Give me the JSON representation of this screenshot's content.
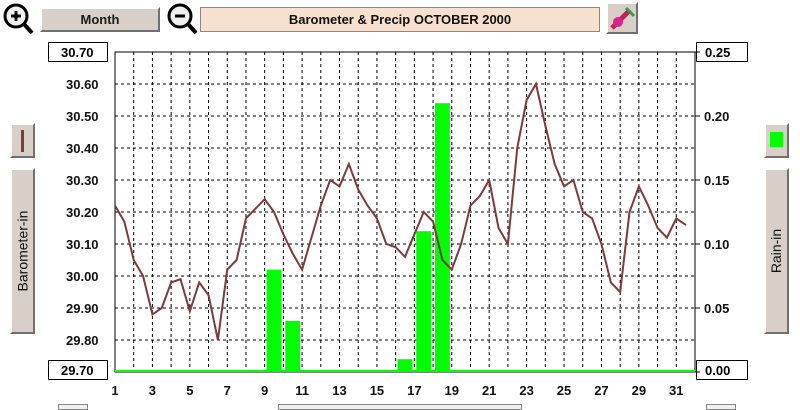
{
  "toolbar": {
    "zoom_in_icon": "zoom-in-icon",
    "zoom_out_icon": "zoom-out-icon",
    "period_label": "Month",
    "title": "Barometer & Precip  OCTOBER 2000",
    "tool_icon": "paint-brush-icon"
  },
  "side": {
    "left_label": "Barometer-in",
    "right_label": "Rain-in",
    "left_swatch_color": "#7f3a3a",
    "right_swatch_color": "#00ff00"
  },
  "colors": {
    "barometer": "#7f3a3a",
    "rain": "#00ff00",
    "grid": "#000000"
  },
  "chart_data": {
    "type": "line",
    "title": "Barometer & Precip  OCTOBER 2000",
    "ylabel": "Barometer-in",
    "ylabel_right": "Rain-in",
    "x_tick_labels": [
      "1",
      "3",
      "5",
      "7",
      "9",
      "11",
      "13",
      "15",
      "17",
      "19",
      "21",
      "23",
      "25",
      "27",
      "29",
      "31"
    ],
    "y_left_ticks": [
      "30.70",
      "30.60",
      "30.50",
      "30.40",
      "30.30",
      "30.20",
      "30.10",
      "30.00",
      "29.90",
      "29.80",
      "29.70"
    ],
    "y_right_ticks": [
      "0.25",
      "0.20",
      "0.15",
      "0.10",
      "0.05",
      "0.00"
    ],
    "ylim": [
      29.7,
      30.7
    ],
    "ylim_right": [
      0,
      0.25
    ],
    "xlim": [
      1,
      32
    ],
    "grid": true,
    "series": [
      {
        "type": "line",
        "x": [
          1,
          1.5,
          2,
          2.5,
          3,
          3.5,
          4,
          4.5,
          5,
          5.5,
          6,
          6.5,
          7,
          7.5,
          8,
          8.5,
          9,
          9.5,
          10,
          10.5,
          11,
          11.5,
          12,
          12.5,
          13,
          13.5,
          14,
          14.5,
          15,
          15.5,
          16,
          16.5,
          17,
          17.5,
          18,
          18.5,
          19,
          19.5,
          20,
          20.5,
          21,
          21.5,
          22,
          22.5,
          23,
          23.5,
          24,
          24.5,
          25,
          25.5,
          26,
          26.5,
          27,
          27.5,
          28,
          28.5,
          29,
          29.5,
          30,
          30.5,
          31,
          31.5
        ],
        "values": [
          30.22,
          30.17,
          30.05,
          30.0,
          29.88,
          29.9,
          29.98,
          29.99,
          29.89,
          29.98,
          29.94,
          29.8,
          30.02,
          30.05,
          30.18,
          30.21,
          30.24,
          30.2,
          30.13,
          30.07,
          30.02,
          30.12,
          30.22,
          30.3,
          30.28,
          30.35,
          30.27,
          30.22,
          30.18,
          30.1,
          30.09,
          30.06,
          30.13,
          30.2,
          30.17,
          30.05,
          30.02,
          30.1,
          30.22,
          30.25,
          30.3,
          30.15,
          30.1,
          30.4,
          30.55,
          30.6,
          30.47,
          30.35,
          30.28,
          30.3,
          30.2,
          30.18,
          30.1,
          29.98,
          29.95,
          30.2,
          30.28,
          30.22,
          30.15,
          30.12,
          30.18,
          30.16
        ]
      },
      {
        "type": "bar",
        "axis": "right",
        "x": [
          9.5,
          10.5,
          16.5,
          17.5,
          18.5
        ],
        "values": [
          0.08,
          0.04,
          0.01,
          0.11,
          0.21
        ]
      }
    ]
  }
}
